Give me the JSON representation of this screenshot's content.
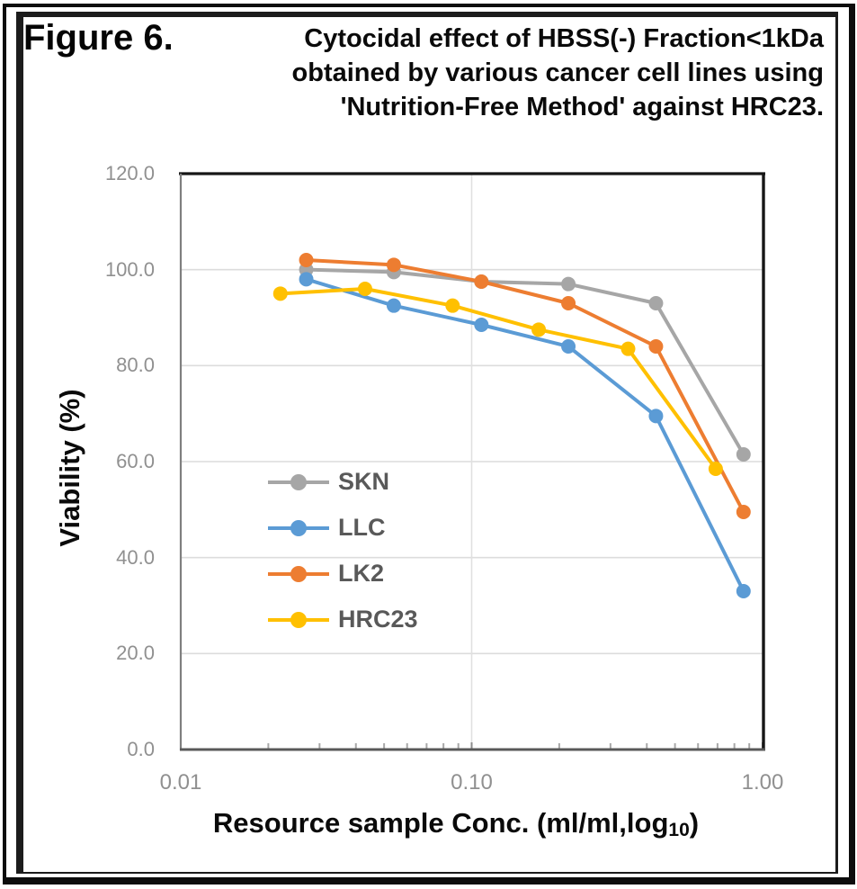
{
  "figure": {
    "label": "Figure 6.",
    "title_lines": [
      "Cytocidal effect of HBSS(-) Fraction<1kDa",
      "obtained by various cancer cell lines using",
      "'Nutrition-Free Method' against HRC23."
    ]
  },
  "chart_data": {
    "type": "line",
    "title": "Figure 6. Cytocidal effect of HBSS(-) Fraction<1kDa obtained by various cancer cell lines using 'Nutrition-Free Method' against HRC23.",
    "x_scale": "log10",
    "xlabel": {
      "prefix": "Resource sample Conc. (ml/ml,log",
      "subscript": "10",
      "suffix": ")"
    },
    "ylabel": "Viability (%)",
    "xlim": [
      0.01,
      1.0
    ],
    "ylim": [
      0,
      120
    ],
    "x_ticks": [
      {
        "value": 0.01,
        "label": "0.01"
      },
      {
        "value": 0.1,
        "label": "0.10"
      },
      {
        "value": 1.0,
        "label": "1.00"
      }
    ],
    "y_ticks": [
      {
        "value": 120,
        "label": "120.0"
      },
      {
        "value": 100,
        "label": "100.0"
      },
      {
        "value": 80,
        "label": "80.0"
      },
      {
        "value": 60,
        "label": "60.0"
      },
      {
        "value": 40,
        "label": "40.0"
      },
      {
        "value": 20,
        "label": "20.0"
      },
      {
        "value": 0,
        "label": "0.0"
      }
    ],
    "grid": {
      "horizontal": [
        20,
        40,
        60,
        80,
        100
      ],
      "vertical": [
        0.1
      ]
    },
    "minor_ticks": [
      0.02,
      0.03,
      0.04,
      0.05,
      0.06,
      0.07,
      0.08,
      0.09,
      0.2,
      0.3,
      0.4,
      0.5,
      0.6,
      0.7,
      0.8,
      0.9
    ],
    "legend_position": "inside-left-middle",
    "series": [
      {
        "name": "SKN",
        "color": "#a6a6a6",
        "x": [
          0.027,
          0.054,
          0.108,
          0.215,
          0.43,
          0.86
        ],
        "y": [
          100.0,
          99.5,
          97.5,
          97.0,
          93.0,
          61.5
        ]
      },
      {
        "name": "LLC",
        "color": "#5b9bd5",
        "x": [
          0.027,
          0.054,
          0.108,
          0.215,
          0.43,
          0.86
        ],
        "y": [
          98.0,
          92.5,
          88.5,
          84.0,
          69.5,
          33.0
        ]
      },
      {
        "name": "LK2",
        "color": "#ed7d31",
        "x": [
          0.027,
          0.054,
          0.108,
          0.215,
          0.43,
          0.86
        ],
        "y": [
          102.0,
          101.0,
          97.5,
          93.0,
          84.0,
          49.5
        ]
      },
      {
        "name": "HRC23",
        "color": "#ffc000",
        "x": [
          0.022,
          0.043,
          0.086,
          0.17,
          0.345,
          0.69
        ],
        "y": [
          95.0,
          96.0,
          92.5,
          87.5,
          83.5,
          58.5
        ]
      }
    ]
  }
}
